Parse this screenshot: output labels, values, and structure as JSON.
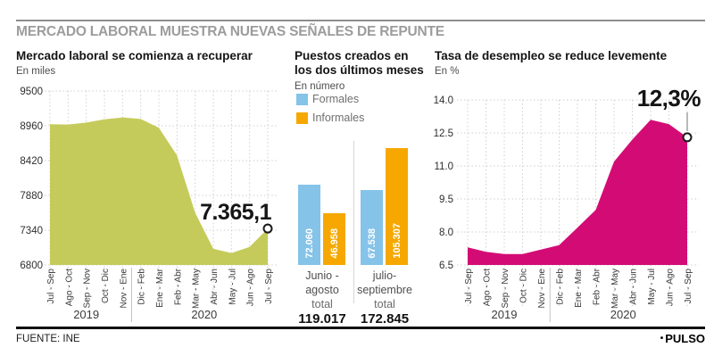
{
  "header": {
    "title": "MERCADO LABORAL MUESTRA NUEVAS SEÑALES DE REPUNTE"
  },
  "footer": {
    "source": "FUENTE: INE",
    "brand": "PULSO",
    "bullet": "•"
  },
  "chart_data": [
    {
      "id": "employment",
      "type": "area",
      "title": "Mercado laboral se comienza a recuperar",
      "subtitle": "En miles",
      "color": "#c5cb5a",
      "ylim": [
        6800,
        9500
      ],
      "y_ticks": [
        "9500",
        "8960",
        "8420",
        "7880",
        "7340",
        "6800"
      ],
      "categories": [
        "Jul - Sep",
        "Ago - Oct",
        "Sep - Nov",
        "Oct - Dic",
        "Nov - Ene",
        "Dic - Feb",
        "Ene - Mar",
        "Feb - Abr",
        "Mar - May",
        "Abr - Jun",
        "May - Jul",
        "Jun - Ago",
        "Jul - Sep"
      ],
      "values": [
        8985,
        8980,
        9010,
        9060,
        9090,
        9065,
        8930,
        8500,
        7610,
        7050,
        6985,
        7080,
        7365.1
      ],
      "year_groups": [
        {
          "label": "2019",
          "span": 5
        },
        {
          "label": "2020",
          "span": 8
        }
      ],
      "end_label": "7.365,1",
      "grid": true,
      "legend_position": "none"
    },
    {
      "id": "jobs-created",
      "type": "bar",
      "title": "Puestos creados en los dos últimos meses",
      "subtitle": "En número",
      "legend": [
        {
          "label": "Formales",
          "color": "#85c3e8"
        },
        {
          "label": "Informales",
          "color": "#f6a800"
        }
      ],
      "total_caption": "total",
      "groups": [
        {
          "label": "Junio -\nagosto",
          "series": [
            {
              "name": "Formales",
              "value": 72060,
              "display": "72.060"
            },
            {
              "name": "Informales",
              "value": 46958,
              "display": "46.958"
            }
          ],
          "total_value": 119017,
          "total_display": "119.017"
        },
        {
          "label": "julio-\nseptiembre",
          "series": [
            {
              "name": "Formales",
              "value": 67538,
              "display": "67.538"
            },
            {
              "name": "Informales",
              "value": 105307,
              "display": "105.307"
            }
          ],
          "total_value": 172845,
          "total_display": "172.845"
        }
      ]
    },
    {
      "id": "unemployment",
      "type": "area",
      "title": "Tasa de desempleo se reduce levemente",
      "subtitle": "En %",
      "color": "#d30c75",
      "ylim": [
        6.5,
        14.0
      ],
      "y_ticks": [
        "14.0",
        "12.5",
        "11.0",
        "9.5",
        "8.0",
        "6.5"
      ],
      "categories": [
        "Jul - Sep",
        "Ago - Oct",
        "Sep - Nov",
        "Oct - Dic",
        "Nov - Ene",
        "Dic - Feb",
        "Ene - Mar",
        "Feb - Abr",
        "Mar - May",
        "Abr - Jun",
        "May - Jul",
        "Jun - Ago",
        "Jul - Sep"
      ],
      "values": [
        7.3,
        7.1,
        7.0,
        7.0,
        7.2,
        7.4,
        8.2,
        9.0,
        11.2,
        12.2,
        13.1,
        12.9,
        12.3
      ],
      "year_groups": [
        {
          "label": "2019",
          "span": 5
        },
        {
          "label": "2020",
          "span": 8
        }
      ],
      "end_label": "12,3%",
      "grid": true,
      "legend_position": "none"
    }
  ]
}
